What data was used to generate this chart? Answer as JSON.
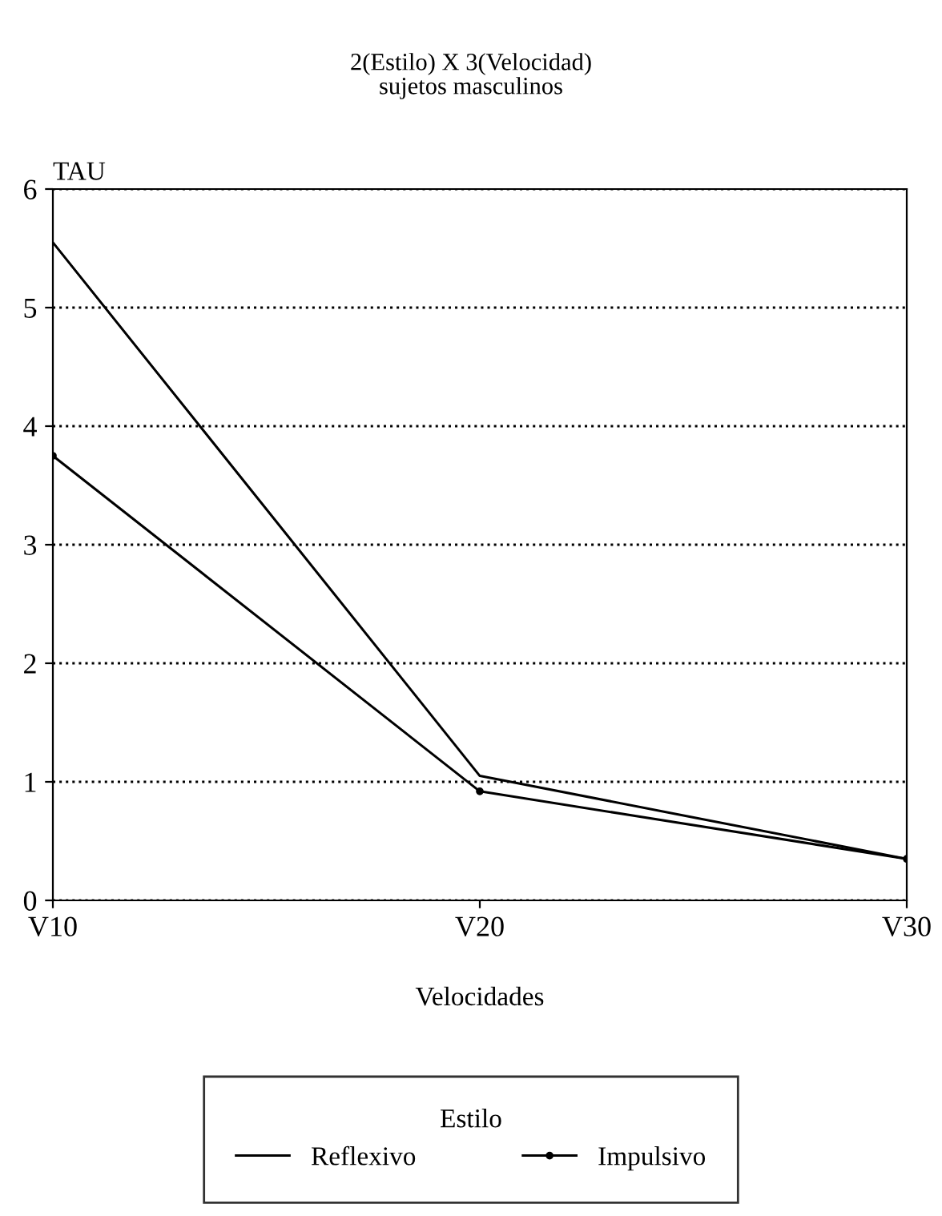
{
  "chart_data": {
    "type": "line",
    "title": "2(Estilo) X 3(Velocidad)",
    "subtitle": "sujetos masculinos",
    "xlabel": "Velocidades",
    "ylabel": "TAU",
    "legend_title": "Estilo",
    "categories": [
      "V10",
      "V20",
      "V30"
    ],
    "series": [
      {
        "name": "Reflexivo",
        "color": "#000000",
        "values": [
          5.55,
          1.05,
          0.35
        ],
        "marker": "none"
      },
      {
        "name": "Impulsivo",
        "color": "#000000",
        "values": [
          3.75,
          0.92,
          0.35
        ],
        "marker": "circle"
      }
    ],
    "ylim": [
      0,
      6
    ],
    "yticks": [
      0,
      1,
      2,
      3,
      4,
      5,
      6
    ],
    "grid": "y",
    "legend": "bottom",
    "line_style": "solid"
  }
}
